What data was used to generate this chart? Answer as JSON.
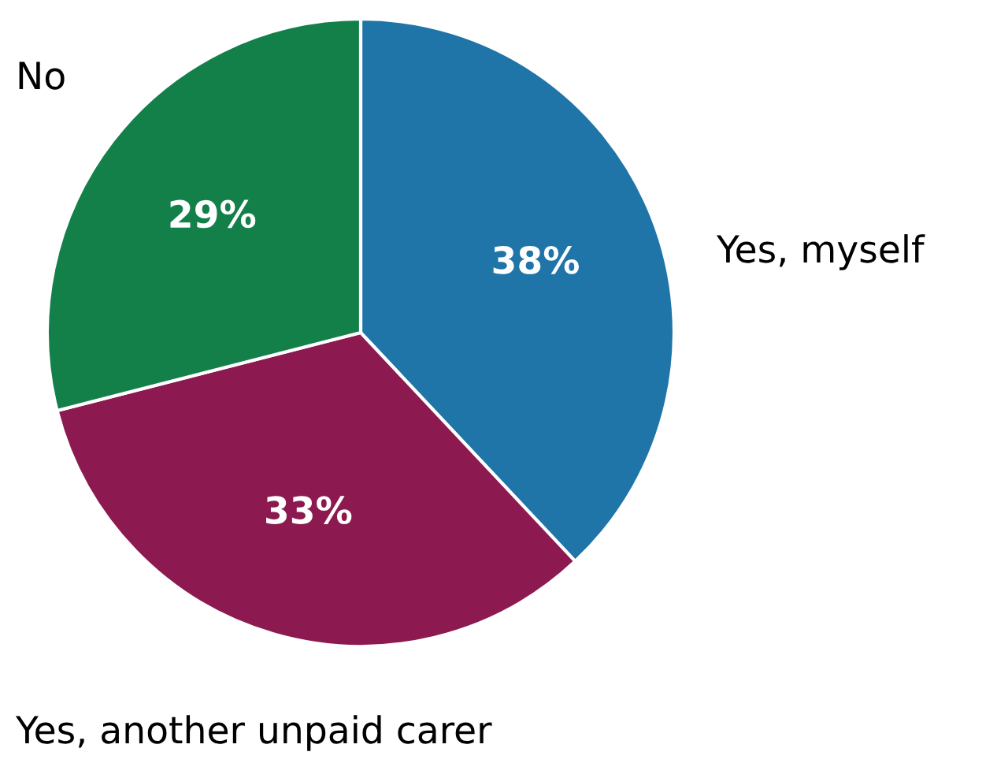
{
  "chart_data": {
    "type": "pie",
    "categories": [
      "Yes, myself",
      "Yes, another unpaid carer",
      "No"
    ],
    "values": [
      38,
      33,
      29
    ],
    "colors": [
      "#1f74a8",
      "#8c1a50",
      "#13804a"
    ],
    "value_labels": [
      "38%",
      "33%",
      "29%"
    ]
  }
}
